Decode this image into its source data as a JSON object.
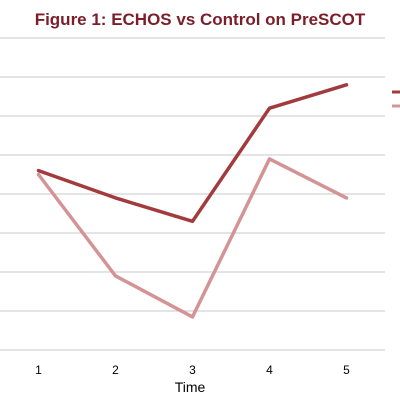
{
  "chart_data": {
    "type": "line",
    "title": "Figure 1: ECHOS vs Control on PreSCOT",
    "xlabel": "Time",
    "ylabel": "",
    "x": [
      1,
      2,
      3,
      4,
      5
    ],
    "xlim": [
      0.5,
      5.5
    ],
    "ylim": [
      0,
      8
    ],
    "grid": true,
    "legend": "right",
    "series": [
      {
        "values": [
          4.6,
          3.9,
          3.3,
          6.2,
          6.8
        ],
        "color": "#a33a3d"
      },
      {
        "values": [
          4.5,
          1.9,
          0.85,
          4.9,
          3.9
        ],
        "color": "#d49495"
      }
    ]
  }
}
